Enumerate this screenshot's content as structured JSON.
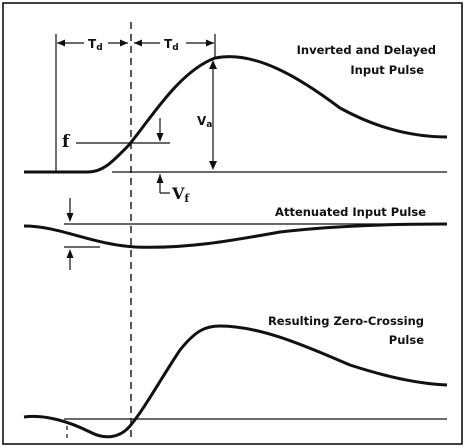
{
  "labels": {
    "td_left": "T",
    "td_left_sub": "d",
    "td_right": "T",
    "td_right_sub": "d",
    "top_title_line1": "Inverted and Delayed",
    "top_title_line2": "Input Pulse",
    "va": "V",
    "va_sub": "a",
    "f": "f",
    "vf": "V",
    "vf_sub": "f",
    "middle_title": "Attenuated Input Pulse",
    "bottom_title_line1": "Resulting Zero-Crossing",
    "bottom_title_line2": "Pulse"
  },
  "colors": {
    "ink": "#111111",
    "background": "#ffffff"
  }
}
